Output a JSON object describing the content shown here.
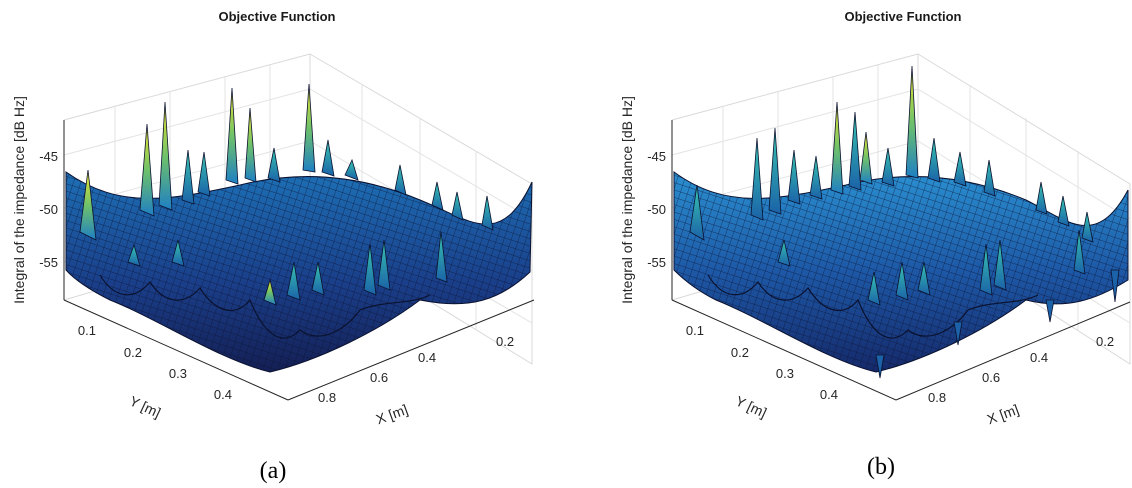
{
  "chart_data": [
    {
      "type": "surface",
      "panel": "(a)",
      "title": "Objective Function",
      "xlabel": "X [m]",
      "ylabel": "Y [m]",
      "zlabel": "Integral of the impedance [dB Hz]",
      "x_ticks": [
        "0.2",
        "0.4",
        "0.6",
        "0.8"
      ],
      "y_ticks": [
        "0.1",
        "0.2",
        "0.3",
        "0.4"
      ],
      "z_ticks": [
        "-45",
        "-50",
        "-55"
      ],
      "zlim": [
        -58,
        -38
      ],
      "grid": true,
      "colormap": "parula"
    },
    {
      "type": "surface",
      "panel": "(b)",
      "title": "Objective Function",
      "xlabel": "X [m]",
      "ylabel": "Y [m]",
      "zlabel": "Integral of the impedance [dB Hz]",
      "x_ticks": [
        "0.2",
        "0.4",
        "0.6",
        "0.8"
      ],
      "y_ticks": [
        "0.1",
        "0.2",
        "0.3",
        "0.4"
      ],
      "z_ticks": [
        "-45",
        "-50",
        "-55"
      ],
      "zlim": [
        -60,
        -38
      ],
      "grid": true,
      "colormap": "parula"
    }
  ]
}
